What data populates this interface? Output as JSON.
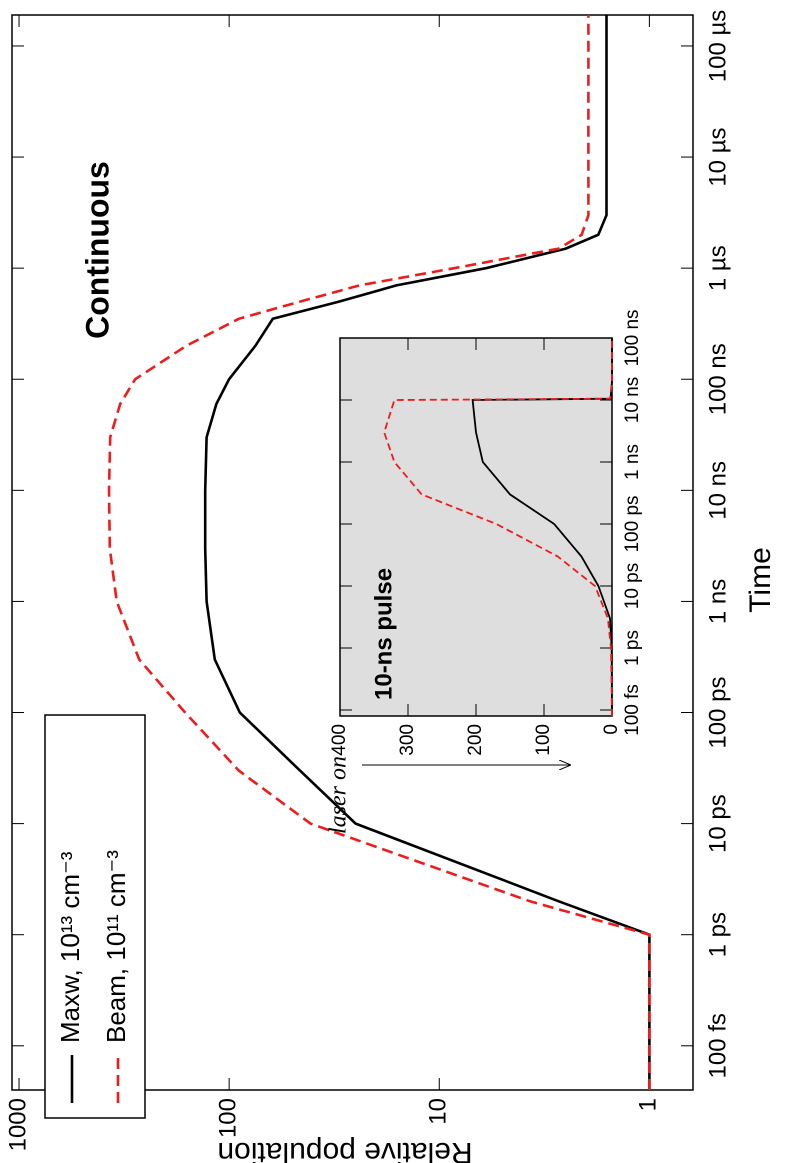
{
  "chart_data": [
    {
      "type": "line",
      "xlabel": "Time",
      "ylabel": "Relative population",
      "annotation": "Continuous",
      "arrow_label": "laser on",
      "log_x": true,
      "log_y": true,
      "xlim": [
        0.04,
        190000000
      ],
      "ylim": [
        0.62,
        1080
      ],
      "xticks": [
        {
          "value": 0.1,
          "label": "100 fs"
        },
        {
          "value": 1,
          "label": "1 ps"
        },
        {
          "value": 10,
          "label": "10 ps"
        },
        {
          "value": 100,
          "label": "100 ps"
        },
        {
          "value": 1000,
          "label": "1 ns"
        },
        {
          "value": 10000,
          "label": "10 ns"
        },
        {
          "value": 100000,
          "label": "100 ns"
        },
        {
          "value": 1000000,
          "label": "1 µs"
        },
        {
          "value": 10000000,
          "label": "10 µs"
        },
        {
          "value": 100000000,
          "label": "100 µs"
        }
      ],
      "yticks": [
        1,
        10,
        100,
        1000
      ],
      "x": [
        0.04,
        1,
        2,
        10,
        30,
        100,
        300,
        1000,
        3000,
        10000,
        30000,
        60000,
        100000,
        200000,
        350000,
        500000,
        700000,
        1000000,
        1500000,
        2000000,
        3000000,
        10000000,
        190000000
      ],
      "series": [
        {
          "name": "Maxw, 10¹³ cm⁻³",
          "color": "#000000",
          "dash": "solid",
          "values": [
            1,
            1,
            2.7,
            25,
            46,
            89,
            117,
            128,
            130,
            130,
            128,
            115,
            100,
            75,
            62,
            30,
            16,
            6,
            2.5,
            1.75,
            1.6,
            1.6,
            1.6
          ]
        },
        {
          "name": "Beam, 10¹¹ cm⁻³",
          "color": "#ee1c1c",
          "dash": "dashed",
          "values": [
            1,
            1,
            3.7,
            41,
            90,
            162,
            268,
            343,
            370,
            373,
            368,
            330,
            280,
            160,
            90,
            46,
            24,
            8.5,
            2.7,
            2.1,
            1.95,
            1.95,
            1.95
          ]
        }
      ],
      "legend": "upper-left"
    },
    {
      "type": "line",
      "annotation": "10-ns pulse",
      "log_x": true,
      "log_y": false,
      "background": "#dedede",
      "xlim": [
        0.08,
        100000
      ],
      "ylim": [
        0,
        400
      ],
      "xticks": [
        {
          "value": 0.1,
          "label": "100 fs"
        },
        {
          "value": 1,
          "label": "1 ps"
        },
        {
          "value": 10,
          "label": "10 ps"
        },
        {
          "value": 100,
          "label": "100 ps"
        },
        {
          "value": 1000,
          "label": "1 ns"
        },
        {
          "value": 10000,
          "label": "10 ns"
        },
        {
          "value": 100000,
          "label": "100 ns"
        }
      ],
      "yticks": [
        0,
        100,
        200,
        300,
        400
      ],
      "x": [
        0.08,
        1,
        3,
        10,
        30,
        100,
        300,
        1000,
        3000,
        10000,
        10500,
        20000,
        100000
      ],
      "series": [
        {
          "color": "#000000",
          "dash": "solid",
          "values": [
            0,
            0.5,
            3,
            20,
            45,
            85,
            150,
            190,
            200,
            205,
            2,
            0,
            0
          ]
        },
        {
          "color": "#ee1c1c",
          "dash": "dashed",
          "values": [
            0,
            1.5,
            6,
            25,
            80,
            170,
            280,
            320,
            335,
            320,
            3,
            0,
            0
          ]
        }
      ]
    }
  ]
}
